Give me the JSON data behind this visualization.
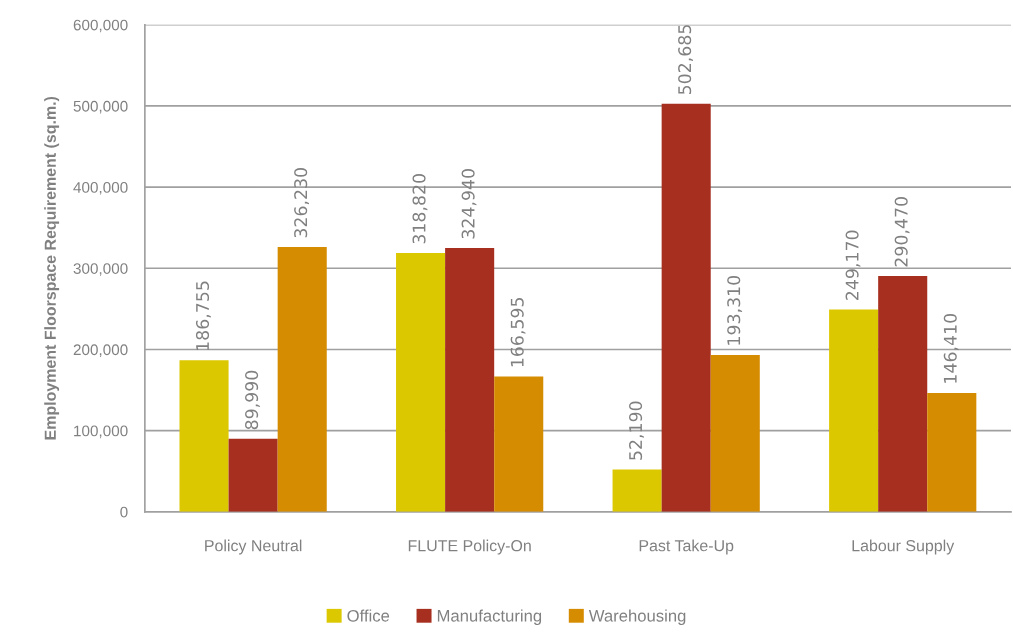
{
  "chart_data": {
    "type": "bar",
    "ylabel": "Employment Floorspace Requirement (sq.m.)",
    "categories": [
      "Policy Neutral",
      "FLUTE Policy-On",
      "Past Take-Up",
      "Labour Supply"
    ],
    "series": [
      {
        "name": "Office",
        "color": "#dcc800",
        "values": [
          186755,
          318820,
          52190,
          249170
        ],
        "value_labels": [
          "186,755",
          "318,820",
          "52,190",
          "249,170"
        ]
      },
      {
        "name": "Manufacturing",
        "color": "#a62f1f",
        "values": [
          89990,
          324940,
          502685,
          290470
        ],
        "value_labels": [
          "89,990",
          "324,940",
          "502,685",
          "290,470"
        ]
      },
      {
        "name": "Warehousing",
        "color": "#d68c00",
        "values": [
          326230,
          166595,
          193310,
          146410
        ],
        "value_labels": [
          "326,230",
          "166,595",
          "193,310",
          "146,410"
        ]
      }
    ],
    "ylim": [
      0,
      600000
    ],
    "yticks": [
      0,
      {
        "value": 100000,
        "label": "100,000"
      },
      {
        "value": 200000,
        "label": "200,000"
      },
      {
        "value": 300000,
        "label": "300,000"
      },
      {
        "value": 400000,
        "label": "400,000"
      },
      {
        "value": 500000,
        "label": "500,000"
      },
      {
        "value": 600000,
        "label": "600,000"
      }
    ],
    "grid": "y",
    "legend": "bottom"
  }
}
